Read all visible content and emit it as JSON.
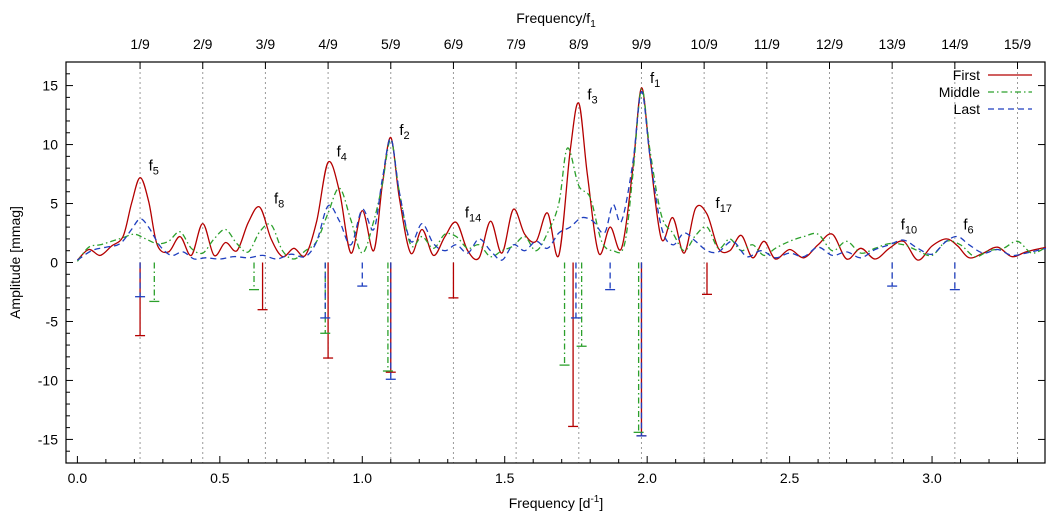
{
  "chart_data": {
    "type": "line",
    "title": "",
    "xlabel": "Frequency [d",
    "xlabel_sup": "-1",
    "xlabel_end": "]",
    "ylabel": "Amplitude [mmag]",
    "x2label": "Frequency/f",
    "x2label_sub": "1",
    "xlim": [
      -0.04,
      3.4
    ],
    "ylim": [
      -17,
      17
    ],
    "xticks": [
      0.0,
      0.5,
      1.0,
      1.5,
      2.0,
      2.5,
      3.0
    ],
    "xtick_labels": [
      "0.0",
      "0.5",
      "1.0",
      "1.5",
      "2.0",
      "2.5",
      "3.0"
    ],
    "yticks": [
      -15,
      -10,
      -5,
      0,
      5,
      10,
      15
    ],
    "ytick_labels": [
      "-15",
      "-10",
      "-5",
      "0",
      "5",
      "10",
      "15"
    ],
    "f1": 1.98,
    "harmonics": [
      {
        "label": "1/9",
        "value": 0.22
      },
      {
        "label": "2/9",
        "value": 0.44
      },
      {
        "label": "3/9",
        "value": 0.66
      },
      {
        "label": "4/9",
        "value": 0.88
      },
      {
        "label": "5/9",
        "value": 1.1
      },
      {
        "label": "6/9",
        "value": 1.32
      },
      {
        "label": "7/9",
        "value": 1.54
      },
      {
        "label": "8/9",
        "value": 1.76
      },
      {
        "label": "9/9",
        "value": 1.98
      },
      {
        "label": "10/9",
        "value": 2.2
      },
      {
        "label": "11/9",
        "value": 2.42
      },
      {
        "label": "12/9",
        "value": 2.64
      },
      {
        "label": "13/9",
        "value": 2.86
      },
      {
        "label": "14/9",
        "value": 3.08
      },
      {
        "label": "15/9",
        "value": 3.3
      }
    ],
    "legend_position": "top-right",
    "series": [
      {
        "name": "First",
        "color": "#b40000",
        "style": "solid",
        "x": [
          0.0,
          0.04,
          0.08,
          0.12,
          0.16,
          0.19,
          0.22,
          0.25,
          0.28,
          0.32,
          0.36,
          0.4,
          0.44,
          0.48,
          0.52,
          0.56,
          0.6,
          0.64,
          0.68,
          0.72,
          0.76,
          0.8,
          0.84,
          0.88,
          0.92,
          0.96,
          1.0,
          1.04,
          1.07,
          1.1,
          1.13,
          1.17,
          1.21,
          1.25,
          1.29,
          1.33,
          1.37,
          1.41,
          1.45,
          1.49,
          1.53,
          1.57,
          1.61,
          1.65,
          1.69,
          1.73,
          1.76,
          1.79,
          1.83,
          1.87,
          1.91,
          1.95,
          1.98,
          2.01,
          2.05,
          2.09,
          2.13,
          2.17,
          2.21,
          2.25,
          2.29,
          2.33,
          2.37,
          2.41,
          2.45,
          2.5,
          2.55,
          2.6,
          2.65,
          2.7,
          2.75,
          2.8,
          2.85,
          2.9,
          2.95,
          3.0,
          3.05,
          3.09,
          3.13,
          3.18,
          3.23,
          3.28,
          3.33,
          3.4
        ],
        "y": [
          0.2,
          1.1,
          0.6,
          1.4,
          2.2,
          5.0,
          7.2,
          5.2,
          1.5,
          0.9,
          2.2,
          0.6,
          3.3,
          0.6,
          1.7,
          1.0,
          3.4,
          4.7,
          2.0,
          0.5,
          1.2,
          0.6,
          3.5,
          8.5,
          6.0,
          0.8,
          4.4,
          1.0,
          6.5,
          10.6,
          5.5,
          0.8,
          2.8,
          0.6,
          2.2,
          3.4,
          1.0,
          0.4,
          3.5,
          0.8,
          4.5,
          2.4,
          1.8,
          4.2,
          0.6,
          9.5,
          13.5,
          7.5,
          0.8,
          3.0,
          1.2,
          8.0,
          14.8,
          9.0,
          2.0,
          3.8,
          0.8,
          4.6,
          4.1,
          1.2,
          1.0,
          2.3,
          0.4,
          1.8,
          0.3,
          1.1,
          0.4,
          1.5,
          2.4,
          0.3,
          1.2,
          0.3,
          1.2,
          1.8,
          0.2,
          1.4,
          2.0,
          1.4,
          0.4,
          0.8,
          1.3,
          0.5,
          0.9,
          1.3
        ]
      },
      {
        "name": "Middle",
        "color": "#2ca02c",
        "style": "dashdot",
        "x": [
          0.0,
          0.04,
          0.08,
          0.12,
          0.16,
          0.2,
          0.24,
          0.28,
          0.32,
          0.36,
          0.4,
          0.44,
          0.48,
          0.52,
          0.56,
          0.6,
          0.64,
          0.68,
          0.72,
          0.76,
          0.8,
          0.84,
          0.88,
          0.92,
          0.96,
          1.0,
          1.04,
          1.07,
          1.1,
          1.13,
          1.17,
          1.21,
          1.25,
          1.29,
          1.33,
          1.37,
          1.41,
          1.45,
          1.49,
          1.53,
          1.57,
          1.61,
          1.65,
          1.69,
          1.72,
          1.76,
          1.8,
          1.84,
          1.88,
          1.92,
          1.95,
          1.98,
          2.01,
          2.05,
          2.09,
          2.13,
          2.17,
          2.21,
          2.25,
          2.29,
          2.33,
          2.37,
          2.41,
          2.45,
          2.5,
          2.55,
          2.6,
          2.65,
          2.7,
          2.75,
          2.8,
          2.85,
          2.9,
          2.95,
          3.0,
          3.05,
          3.1,
          3.15,
          3.2,
          3.25,
          3.3,
          3.35,
          3.4
        ],
        "y": [
          0.1,
          1.3,
          1.5,
          1.8,
          2.1,
          2.4,
          2.0,
          1.6,
          1.8,
          2.6,
          1.2,
          0.8,
          2.0,
          2.8,
          1.6,
          0.9,
          2.6,
          3.2,
          1.0,
          0.3,
          1.0,
          1.8,
          4.2,
          6.3,
          3.6,
          0.8,
          3.5,
          6.6,
          10.4,
          6.0,
          1.5,
          2.2,
          1.2,
          2.4,
          2.2,
          1.2,
          1.5,
          0.5,
          1.0,
          1.4,
          2.2,
          1.0,
          2.5,
          5.0,
          9.7,
          6.5,
          5.5,
          1.8,
          1.0,
          1.5,
          7.5,
          14.7,
          9.5,
          4.0,
          2.5,
          1.0,
          2.3,
          3.0,
          1.2,
          2.0,
          1.0,
          1.5,
          0.6,
          1.2,
          1.8,
          2.2,
          2.4,
          1.0,
          1.8,
          0.8,
          1.2,
          1.6,
          1.5,
          1.0,
          0.6,
          1.8,
          1.5,
          0.5,
          1.0,
          1.2,
          1.8,
          0.8,
          1.3
        ]
      },
      {
        "name": "Last",
        "color": "#1f3fbf",
        "style": "dashed",
        "x": [
          0.0,
          0.05,
          0.1,
          0.15,
          0.19,
          0.22,
          0.25,
          0.29,
          0.33,
          0.37,
          0.41,
          0.45,
          0.5,
          0.55,
          0.6,
          0.65,
          0.7,
          0.75,
          0.8,
          0.84,
          0.88,
          0.92,
          0.96,
          1.0,
          1.04,
          1.07,
          1.1,
          1.13,
          1.17,
          1.21,
          1.25,
          1.29,
          1.33,
          1.37,
          1.41,
          1.45,
          1.49,
          1.53,
          1.57,
          1.61,
          1.65,
          1.69,
          1.73,
          1.77,
          1.81,
          1.85,
          1.88,
          1.91,
          1.95,
          1.98,
          2.01,
          2.05,
          2.09,
          2.13,
          2.17,
          2.21,
          2.25,
          2.3,
          2.35,
          2.4,
          2.45,
          2.5,
          2.55,
          2.6,
          2.65,
          2.7,
          2.75,
          2.8,
          2.85,
          2.9,
          2.95,
          3.0,
          3.05,
          3.09,
          3.13,
          3.18,
          3.23,
          3.28,
          3.33,
          3.4
        ],
        "y": [
          0.2,
          1.0,
          1.3,
          1.6,
          2.8,
          3.7,
          3.0,
          1.4,
          0.6,
          0.9,
          0.3,
          0.4,
          0.3,
          0.5,
          0.4,
          0.6,
          0.3,
          0.7,
          0.5,
          1.8,
          4.8,
          3.5,
          1.5,
          4.5,
          2.8,
          7.0,
          10.5,
          6.0,
          1.8,
          3.3,
          1.6,
          1.0,
          1.5,
          0.8,
          2.0,
          1.0,
          0.2,
          1.5,
          1.0,
          1.8,
          1.2,
          2.5,
          3.0,
          3.8,
          3.5,
          2.5,
          4.9,
          3.5,
          8.5,
          14.5,
          9.0,
          3.0,
          1.5,
          2.5,
          1.8,
          1.0,
          0.9,
          1.8,
          0.5,
          1.0,
          0.4,
          0.8,
          0.5,
          1.3,
          0.6,
          0.9,
          0.4,
          1.1,
          1.5,
          1.9,
          1.2,
          0.7,
          1.8,
          2.2,
          1.5,
          0.8,
          1.1,
          0.6,
          0.8,
          1.2
        ]
      }
    ],
    "error_bars": [
      {
        "series": "First",
        "x": 0.22,
        "y": -6.2
      },
      {
        "series": "First",
        "x": 0.65,
        "y": -4.0
      },
      {
        "series": "First",
        "x": 0.88,
        "y": -8.1
      },
      {
        "series": "First",
        "x": 1.1,
        "y": -9.3
      },
      {
        "series": "First",
        "x": 1.32,
        "y": -3.0
      },
      {
        "series": "First",
        "x": 1.74,
        "y": -13.9
      },
      {
        "series": "First",
        "x": 1.98,
        "y": -14.7
      },
      {
        "series": "First",
        "x": 2.21,
        "y": -2.7
      },
      {
        "series": "Middle",
        "x": 0.27,
        "y": -3.3
      },
      {
        "series": "Middle",
        "x": 0.62,
        "y": -2.3
      },
      {
        "series": "Middle",
        "x": 0.87,
        "y": -6.0
      },
      {
        "series": "Middle",
        "x": 1.09,
        "y": -9.2
      },
      {
        "series": "Middle",
        "x": 1.71,
        "y": -8.7
      },
      {
        "series": "Middle",
        "x": 1.77,
        "y": -7.1
      },
      {
        "series": "Middle",
        "x": 1.97,
        "y": -14.4
      },
      {
        "series": "Last",
        "x": 0.22,
        "y": -2.9
      },
      {
        "series": "Last",
        "x": 0.87,
        "y": -4.7
      },
      {
        "series": "Last",
        "x": 1.0,
        "y": -2.0
      },
      {
        "series": "Last",
        "x": 1.1,
        "y": -9.9
      },
      {
        "series": "Last",
        "x": 1.75,
        "y": -4.7
      },
      {
        "series": "Last",
        "x": 1.87,
        "y": -2.3
      },
      {
        "series": "Last",
        "x": 1.98,
        "y": -14.7
      },
      {
        "series": "Last",
        "x": 2.86,
        "y": -2.0
      },
      {
        "series": "Last",
        "x": 3.08,
        "y": -2.3
      }
    ],
    "peak_labels": [
      {
        "base": "f",
        "sub": "5",
        "x": 0.25,
        "y": 7.8
      },
      {
        "base": "f",
        "sub": "8",
        "x": 0.69,
        "y": 5.0
      },
      {
        "base": "f",
        "sub": "4",
        "x": 0.91,
        "y": 9.0
      },
      {
        "base": "f",
        "sub": "2",
        "x": 1.13,
        "y": 10.8
      },
      {
        "base": "f",
        "sub": "14",
        "x": 1.36,
        "y": 3.8
      },
      {
        "base": "f",
        "sub": "3",
        "x": 1.79,
        "y": 13.8
      },
      {
        "base": "f",
        "sub": "1",
        "x": 2.01,
        "y": 15.2
      },
      {
        "base": "f",
        "sub": "17",
        "x": 2.24,
        "y": 4.6
      },
      {
        "base": "f",
        "sub": "10",
        "x": 2.89,
        "y": 2.8
      },
      {
        "base": "f",
        "sub": "6",
        "x": 3.11,
        "y": 2.8
      }
    ]
  }
}
